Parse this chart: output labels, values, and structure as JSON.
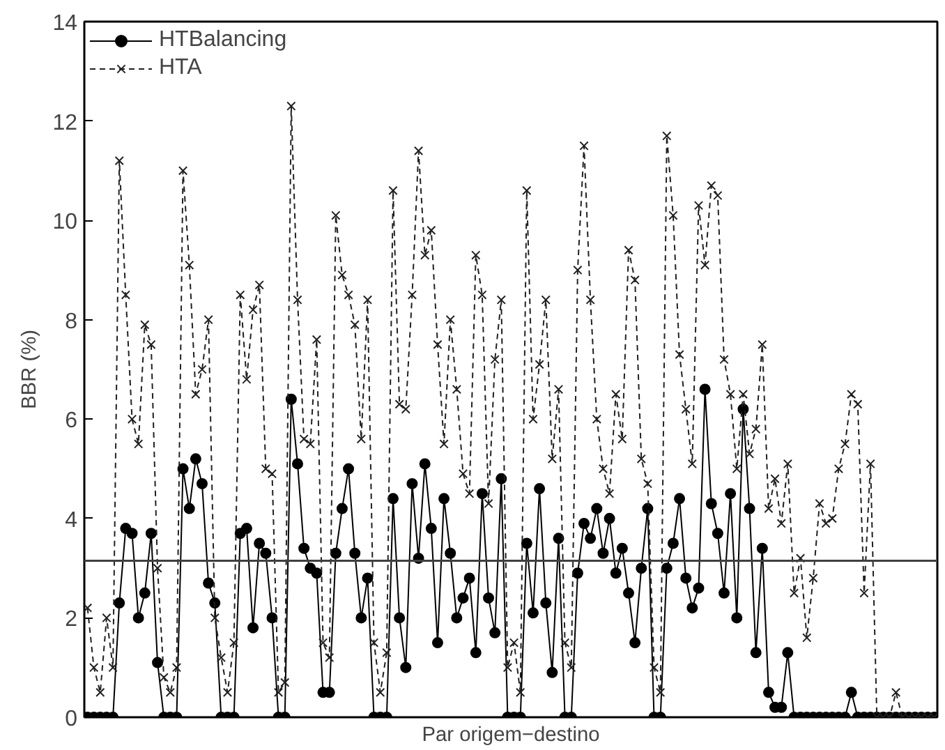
{
  "chart_data": {
    "type": "line",
    "xlabel": "Par origem−destino",
    "ylabel": "BBR (%)",
    "categories": [
      null,
      null,
      null,
      null,
      null,
      null,
      null,
      null,
      null,
      null,
      null,
      null,
      null,
      null,
      null,
      null,
      null,
      null,
      null,
      null,
      null,
      null,
      null,
      null,
      null,
      null,
      null,
      null,
      null,
      null,
      null,
      null,
      null,
      null,
      null,
      null,
      null,
      null,
      null,
      null,
      null,
      null,
      null,
      null,
      null,
      null,
      null,
      null,
      null,
      null,
      null,
      null,
      null,
      null,
      null,
      null,
      null,
      null,
      null,
      null,
      null,
      null,
      null,
      null,
      null,
      null,
      null,
      null,
      null,
      null,
      null,
      null,
      null,
      null,
      null,
      null,
      null,
      null,
      null,
      null,
      null,
      null,
      null,
      null,
      null,
      null,
      null,
      null,
      null,
      null,
      null,
      null,
      null,
      null,
      null,
      null,
      null,
      null,
      null,
      null,
      null,
      null,
      null,
      null,
      null,
      null,
      null,
      null,
      null,
      null,
      null,
      null,
      null,
      null,
      null,
      null,
      null,
      null,
      null,
      null,
      null,
      null,
      null,
      null,
      null,
      null,
      null,
      null,
      null,
      null,
      null,
      null,
      null,
      null
    ],
    "series": [
      {
        "name": "HTBalancing",
        "color": "#000000",
        "marker": "circle",
        "line_style": "solid",
        "values": [
          0,
          0,
          0,
          0,
          0,
          2.3,
          3.8,
          3.7,
          2.0,
          2.5,
          3.7,
          1.1,
          0,
          0,
          0,
          5.0,
          4.2,
          5.2,
          4.7,
          2.7,
          2.3,
          0,
          0,
          0,
          3.7,
          3.8,
          1.8,
          3.5,
          3.3,
          2.0,
          0,
          0,
          6.4,
          5.1,
          3.4,
          3.0,
          2.9,
          0.5,
          0.5,
          3.3,
          4.2,
          5.0,
          3.3,
          2.0,
          2.8,
          0,
          0,
          0,
          4.4,
          2.0,
          1.0,
          4.7,
          3.2,
          5.1,
          3.8,
          1.5,
          4.4,
          3.3,
          2.0,
          2.4,
          2.8,
          1.3,
          4.5,
          2.4,
          1.7,
          4.8,
          0,
          0,
          0,
          3.5,
          2.1,
          4.6,
          2.3,
          0.9,
          3.6,
          0,
          0,
          2.9,
          3.9,
          3.6,
          4.2,
          3.3,
          4.0,
          2.9,
          3.4,
          2.5,
          1.5,
          3.0,
          4.2,
          0,
          0,
          3.0,
          3.5,
          4.4,
          2.8,
          2.2,
          2.6,
          6.6,
          4.3,
          3.7,
          2.5,
          4.5,
          2.0,
          6.2,
          4.2,
          1.3,
          3.4,
          0.5,
          0.2,
          0.2,
          1.3,
          0,
          0,
          0,
          0,
          0,
          0,
          0,
          0,
          0,
          0.5,
          0,
          0,
          0,
          0,
          0,
          0,
          0,
          0,
          0,
          0,
          0,
          0,
          0
        ]
      },
      {
        "name": "HTA",
        "color": "#202020",
        "marker": "cross",
        "line_style": "dashed",
        "values": [
          2.2,
          1.0,
          0.5,
          2.0,
          1.0,
          11.2,
          8.5,
          6.0,
          5.5,
          7.9,
          7.5,
          3.0,
          0.8,
          0.5,
          1.0,
          11.0,
          9.1,
          6.5,
          7.0,
          8.0,
          2.0,
          1.2,
          0.5,
          1.5,
          8.5,
          6.8,
          8.2,
          8.7,
          5.0,
          4.9,
          0.5,
          0.7,
          12.3,
          8.4,
          5.6,
          5.5,
          7.6,
          1.5,
          1.2,
          10.1,
          8.9,
          8.5,
          7.9,
          5.6,
          8.4,
          1.5,
          0.5,
          1.3,
          10.6,
          6.3,
          6.2,
          8.5,
          11.4,
          9.3,
          9.8,
          7.5,
          5.5,
          8.0,
          6.6,
          4.9,
          4.5,
          9.3,
          8.5,
          4.3,
          7.2,
          8.4,
          1.0,
          1.5,
          0.5,
          10.6,
          6.0,
          7.1,
          8.4,
          5.2,
          6.6,
          1.5,
          1.0,
          9.0,
          11.5,
          8.4,
          6.0,
          5.0,
          4.5,
          6.5,
          5.6,
          9.4,
          8.8,
          5.2,
          4.7,
          1.0,
          0.5,
          11.7,
          10.1,
          7.3,
          6.2,
          5.1,
          10.3,
          9.1,
          10.7,
          10.5,
          7.2,
          6.5,
          5.0,
          6.5,
          5.3,
          5.8,
          7.5,
          4.2,
          4.8,
          3.9,
          5.1,
          2.5,
          3.2,
          1.6,
          2.8,
          4.3,
          3.9,
          4.0,
          5.0,
          5.5,
          6.5,
          6.3,
          2.5,
          5.1,
          0,
          0,
          0,
          0.5,
          0,
          0,
          0,
          0,
          0,
          0
        ]
      }
    ],
    "ylim": [
      0,
      14
    ],
    "yticks": [
      0,
      2,
      4,
      6,
      8,
      10,
      12,
      14
    ],
    "grid": false,
    "legend": "top left",
    "ref_lines": [
      {
        "axis": "y",
        "value": 3.15,
        "color": "#404040",
        "line_style": "solid"
      }
    ]
  }
}
